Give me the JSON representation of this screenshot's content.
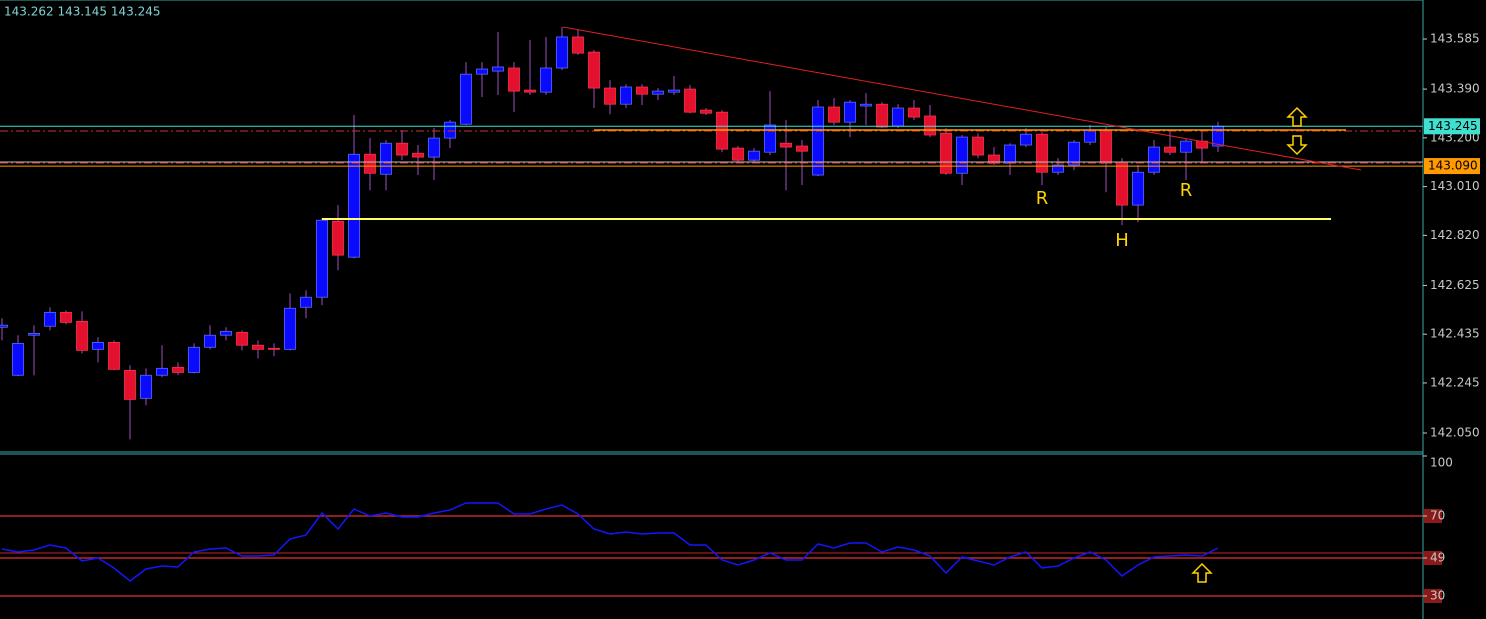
{
  "chart_data": [
    {
      "type": "candlestick",
      "header": "143.262 143.145 143.245",
      "open": [
        142.462,
        142.275,
        142.431,
        142.466,
        142.52,
        142.485,
        142.376,
        142.403,
        142.294,
        142.185,
        142.275,
        142.306,
        142.286,
        142.384,
        142.431,
        142.442,
        142.392,
        142.38,
        142.376,
        142.54,
        142.579,
        142.875,
        142.735,
        143.136,
        143.058,
        143.179,
        143.14,
        143.125,
        143.199,
        143.253,
        143.448,
        143.46,
        143.472,
        143.386,
        143.378,
        143.472,
        143.593,
        143.534,
        143.394,
        143.331,
        143.398,
        143.37,
        143.378,
        143.39,
        143.308,
        143.3,
        143.16,
        143.113,
        143.144,
        143.179,
        143.168,
        143.055,
        143.32,
        143.261,
        143.324,
        143.331,
        143.246,
        143.316,
        143.285,
        143.218,
        143.062,
        143.203,
        143.133,
        143.101,
        143.172,
        143.214,
        143.066,
        143.094,
        143.183,
        143.23,
        143.105,
        142.938,
        143.066,
        143.164,
        143.144,
        143.187,
        143.168
      ],
      "high": [
        142.497,
        142.431,
        142.47,
        142.54,
        142.528,
        142.524,
        142.423,
        142.411,
        142.314,
        142.302,
        142.392,
        142.325,
        142.399,
        142.47,
        142.462,
        142.45,
        142.411,
        142.399,
        142.594,
        142.606,
        142.887,
        142.938,
        143.289,
        143.199,
        143.191,
        143.23,
        143.172,
        143.238,
        143.269,
        143.495,
        143.495,
        143.612,
        143.495,
        143.581,
        143.593,
        143.632,
        143.62,
        143.542,
        143.425,
        143.409,
        143.409,
        143.394,
        143.441,
        143.406,
        143.316,
        143.308,
        143.168,
        143.16,
        143.382,
        143.269,
        143.191,
        143.347,
        143.355,
        143.347,
        143.374,
        143.339,
        143.331,
        143.347,
        143.328,
        143.238,
        143.211,
        143.218,
        143.164,
        143.179,
        143.238,
        143.222,
        143.121,
        143.191,
        143.25,
        143.242,
        143.121,
        143.094,
        143.191,
        143.23,
        143.199,
        143.23,
        143.262
      ],
      "low": [
        142.411,
        142.271,
        142.275,
        142.45,
        142.473,
        142.36,
        142.325,
        142.294,
        142.025,
        142.158,
        142.267,
        142.275,
        142.282,
        142.376,
        142.411,
        142.372,
        142.341,
        142.349,
        142.372,
        142.497,
        142.548,
        142.684,
        142.731,
        142.996,
        142.996,
        143.113,
        143.055,
        143.035,
        143.16,
        143.25,
        143.359,
        143.367,
        143.3,
        143.367,
        143.367,
        143.464,
        143.523,
        143.316,
        143.292,
        143.316,
        143.328,
        143.347,
        143.367,
        143.296,
        143.289,
        143.144,
        143.101,
        143.101,
        143.133,
        142.996,
        143.016,
        143.051,
        143.25,
        143.203,
        143.25,
        143.238,
        143.238,
        143.269,
        143.203,
        143.055,
        143.016,
        143.121,
        143.094,
        143.055,
        143.164,
        143.016,
        143.055,
        143.074,
        143.172,
        142.988,
        142.86,
        142.871,
        143.055,
        143.133,
        143.035,
        143.105,
        143.145
      ],
      "close": [
        142.47,
        142.399,
        142.438,
        142.52,
        142.481,
        142.372,
        142.403,
        142.298,
        142.181,
        142.275,
        142.302,
        142.286,
        142.384,
        142.431,
        142.446,
        142.392,
        142.376,
        142.376,
        142.536,
        142.579,
        142.879,
        142.743,
        143.136,
        143.062,
        143.179,
        143.133,
        143.125,
        143.199,
        143.261,
        143.448,
        143.468,
        143.476,
        143.382,
        143.378,
        143.472,
        143.593,
        143.53,
        143.394,
        143.331,
        143.398,
        143.37,
        143.382,
        143.386,
        143.3,
        143.296,
        143.156,
        143.113,
        143.148,
        143.25,
        143.164,
        143.148,
        143.32,
        143.261,
        143.339,
        143.331,
        143.242,
        143.316,
        143.281,
        143.211,
        143.062,
        143.203,
        143.133,
        143.101,
        143.172,
        143.214,
        143.066,
        143.094,
        143.183,
        143.23,
        143.101,
        142.938,
        143.066,
        143.164,
        143.144,
        143.187,
        143.16,
        143.245
      ],
      "up_color": "#0a0aff",
      "down_color": "#e3102e",
      "wick_color": "#a050c0",
      "ylim": [
        141.976,
        143.737
      ],
      "yticks": [
        143.585,
        {
          "value": 143.39,
          "label": "143.390"
        },
        {
          "value": 143.2,
          "label": "143.200"
        },
        {
          "value": 143.01,
          "label": "143.010"
        },
        {
          "value": 142.82,
          "label": "142.820"
        },
        142.625,
        142.435,
        142.245,
        {
          "value": 142.05,
          "label": "142.050"
        }
      ],
      "price_markers": [
        {
          "value": 143.245,
          "label": "143.245",
          "color": "#40e0d0"
        },
        {
          "value": 143.09,
          "label": "143.090",
          "color": "#ff9a00"
        }
      ],
      "annotations": [
        "R",
        "H",
        "R"
      ]
    },
    {
      "type": "line",
      "values": [
        53.5,
        52,
        53,
        55.5,
        54,
        47.5,
        49,
        44,
        37.5,
        43.5,
        45,
        44.5,
        52,
        53.5,
        54,
        50,
        50,
        50.5,
        58.5,
        60.5,
        71.5,
        63.5,
        73.5,
        70,
        71.5,
        69.5,
        69.5,
        71.5,
        73,
        76.5,
        76.5,
        76.5,
        71,
        71,
        73.5,
        75.5,
        71,
        63.5,
        61,
        62,
        61,
        61.5,
        61.5,
        55.5,
        55.5,
        48,
        45.5,
        48,
        51.5,
        48,
        48,
        56,
        54,
        56.5,
        56.5,
        52,
        54.5,
        53,
        50,
        41.5,
        49.5,
        47.5,
        45.5,
        49.5,
        52,
        44,
        45,
        49,
        52,
        48,
        40,
        45.5,
        49.5,
        50,
        50.5,
        50,
        54
      ],
      "color": "#1515ff",
      "level_color": "#c02828",
      "ylim": [
        18.5,
        100.5
      ],
      "yticks": [
        100,
        70,
        49,
        30
      ],
      "levels": [
        70,
        49,
        30
      ]
    }
  ]
}
